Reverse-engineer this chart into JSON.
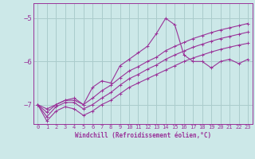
{
  "xlabel": "Windchill (Refroidissement éolien,°C)",
  "background_color": "#cce8e8",
  "grid_color": "#aacccc",
  "line_color": "#993399",
  "xlim": [
    -0.5,
    23.5
  ],
  "ylim": [
    -7.45,
    -4.65
  ],
  "yticks": [
    -7,
    -6,
    -5
  ],
  "xticks": [
    0,
    1,
    2,
    3,
    4,
    5,
    6,
    7,
    8,
    9,
    10,
    11,
    12,
    13,
    14,
    15,
    16,
    17,
    18,
    19,
    20,
    21,
    22,
    23
  ],
  "series": [
    {
      "x": [
        0,
        1,
        2,
        3,
        4,
        5,
        6,
        7,
        8,
        9,
        10,
        11,
        12,
        13,
        14,
        15,
        16,
        17,
        18,
        19,
        20,
        21,
        22,
        23
      ],
      "y": [
        -7.0,
        -7.1,
        -7.0,
        -6.9,
        -6.9,
        -7.0,
        -6.6,
        -6.45,
        -6.5,
        -6.1,
        -5.95,
        -5.8,
        -5.65,
        -5.35,
        -5.0,
        -5.15,
        -5.85,
        -6.0,
        -6.0,
        -6.15,
        -6.0,
        -5.95,
        -6.05,
        -5.95
      ]
    },
    {
      "x": [
        0,
        1,
        2,
        3,
        4,
        5,
        6,
        7,
        8,
        9,
        10,
        11,
        12,
        13,
        14,
        15,
        16,
        17,
        18,
        19,
        20,
        21,
        22,
        23
      ],
      "y": [
        -7.0,
        -7.38,
        -7.15,
        -7.05,
        -7.1,
        -7.25,
        -7.15,
        -7.0,
        -6.9,
        -6.75,
        -6.6,
        -6.5,
        -6.4,
        -6.3,
        -6.2,
        -6.1,
        -6.0,
        -5.92,
        -5.85,
        -5.78,
        -5.72,
        -5.67,
        -5.62,
        -5.58
      ]
    },
    {
      "x": [
        0,
        1,
        2,
        3,
        4,
        5,
        6,
        7,
        8,
        9,
        10,
        11,
        12,
        13,
        14,
        15,
        16,
        17,
        18,
        19,
        20,
        21,
        22,
        23
      ],
      "y": [
        -7.0,
        -7.28,
        -7.05,
        -6.95,
        -6.95,
        -7.1,
        -7.0,
        -6.85,
        -6.72,
        -6.55,
        -6.4,
        -6.3,
        -6.18,
        -6.08,
        -5.95,
        -5.85,
        -5.76,
        -5.67,
        -5.6,
        -5.53,
        -5.47,
        -5.42,
        -5.37,
        -5.32
      ]
    },
    {
      "x": [
        0,
        1,
        2,
        3,
        4,
        5,
        6,
        7,
        8,
        9,
        10,
        11,
        12,
        13,
        14,
        15,
        16,
        17,
        18,
        19,
        20,
        21,
        22,
        23
      ],
      "y": [
        -7.0,
        -7.18,
        -7.0,
        -6.9,
        -6.85,
        -7.0,
        -6.85,
        -6.68,
        -6.55,
        -6.38,
        -6.22,
        -6.12,
        -6.0,
        -5.9,
        -5.75,
        -5.65,
        -5.56,
        -5.47,
        -5.4,
        -5.33,
        -5.27,
        -5.22,
        -5.17,
        -5.12
      ]
    }
  ]
}
